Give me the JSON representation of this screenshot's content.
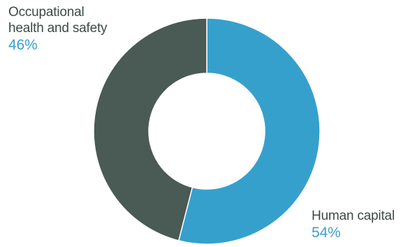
{
  "chart_data": {
    "type": "pie",
    "donut": true,
    "slices": [
      {
        "label": "Human capital",
        "value": 54,
        "value_label": "54%",
        "color": "#36a0cc"
      },
      {
        "label": "Occupational health and safety",
        "label_lines": [
          "Occupational",
          "health and safety"
        ],
        "value": 46,
        "value_label": "46%",
        "color": "#4a5a55"
      }
    ],
    "start": "top",
    "direction": "clockwise",
    "separator_color": "#ffffff",
    "legend": "none"
  }
}
